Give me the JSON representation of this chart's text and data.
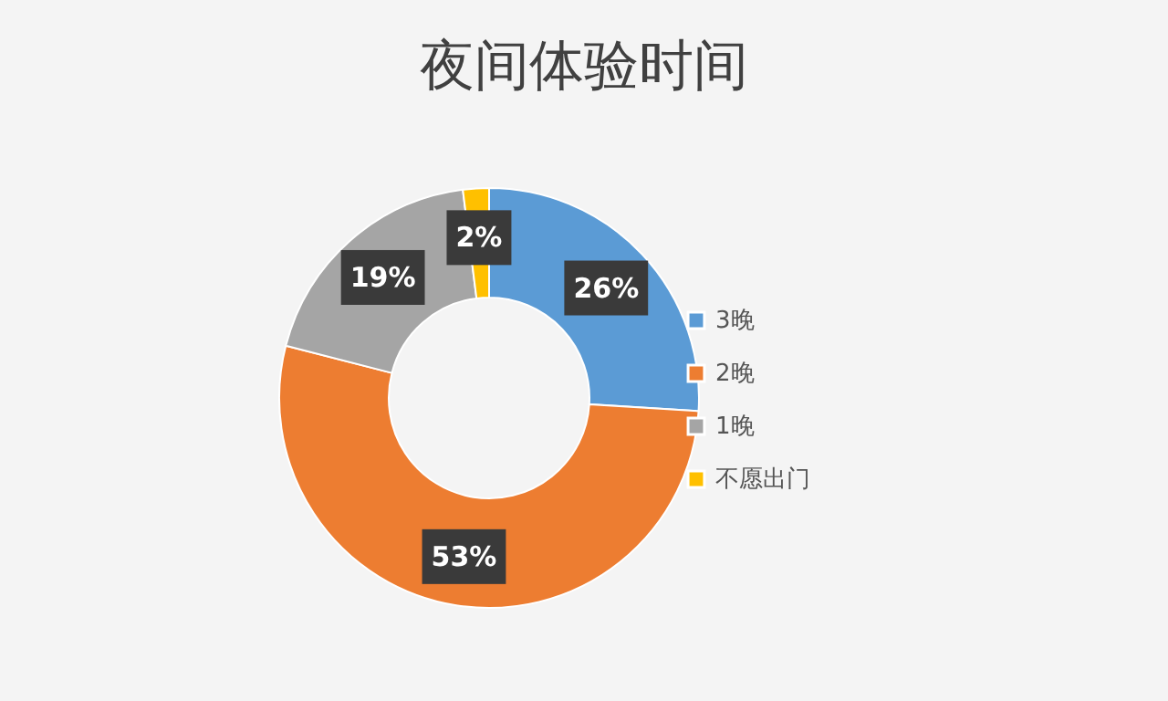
{
  "chart_data": {
    "type": "donut",
    "title": "夜间体验时间",
    "categories": [
      "3晚",
      "2晚",
      "1晚",
      "不愿出门"
    ],
    "values": [
      26,
      53,
      19,
      2
    ],
    "colors": [
      "#5b9bd5",
      "#ed7d31",
      "#a5a5a5",
      "#ffc000"
    ],
    "value_labels": [
      "26%",
      "53%",
      "19%",
      "2%"
    ],
    "legend": "right"
  }
}
